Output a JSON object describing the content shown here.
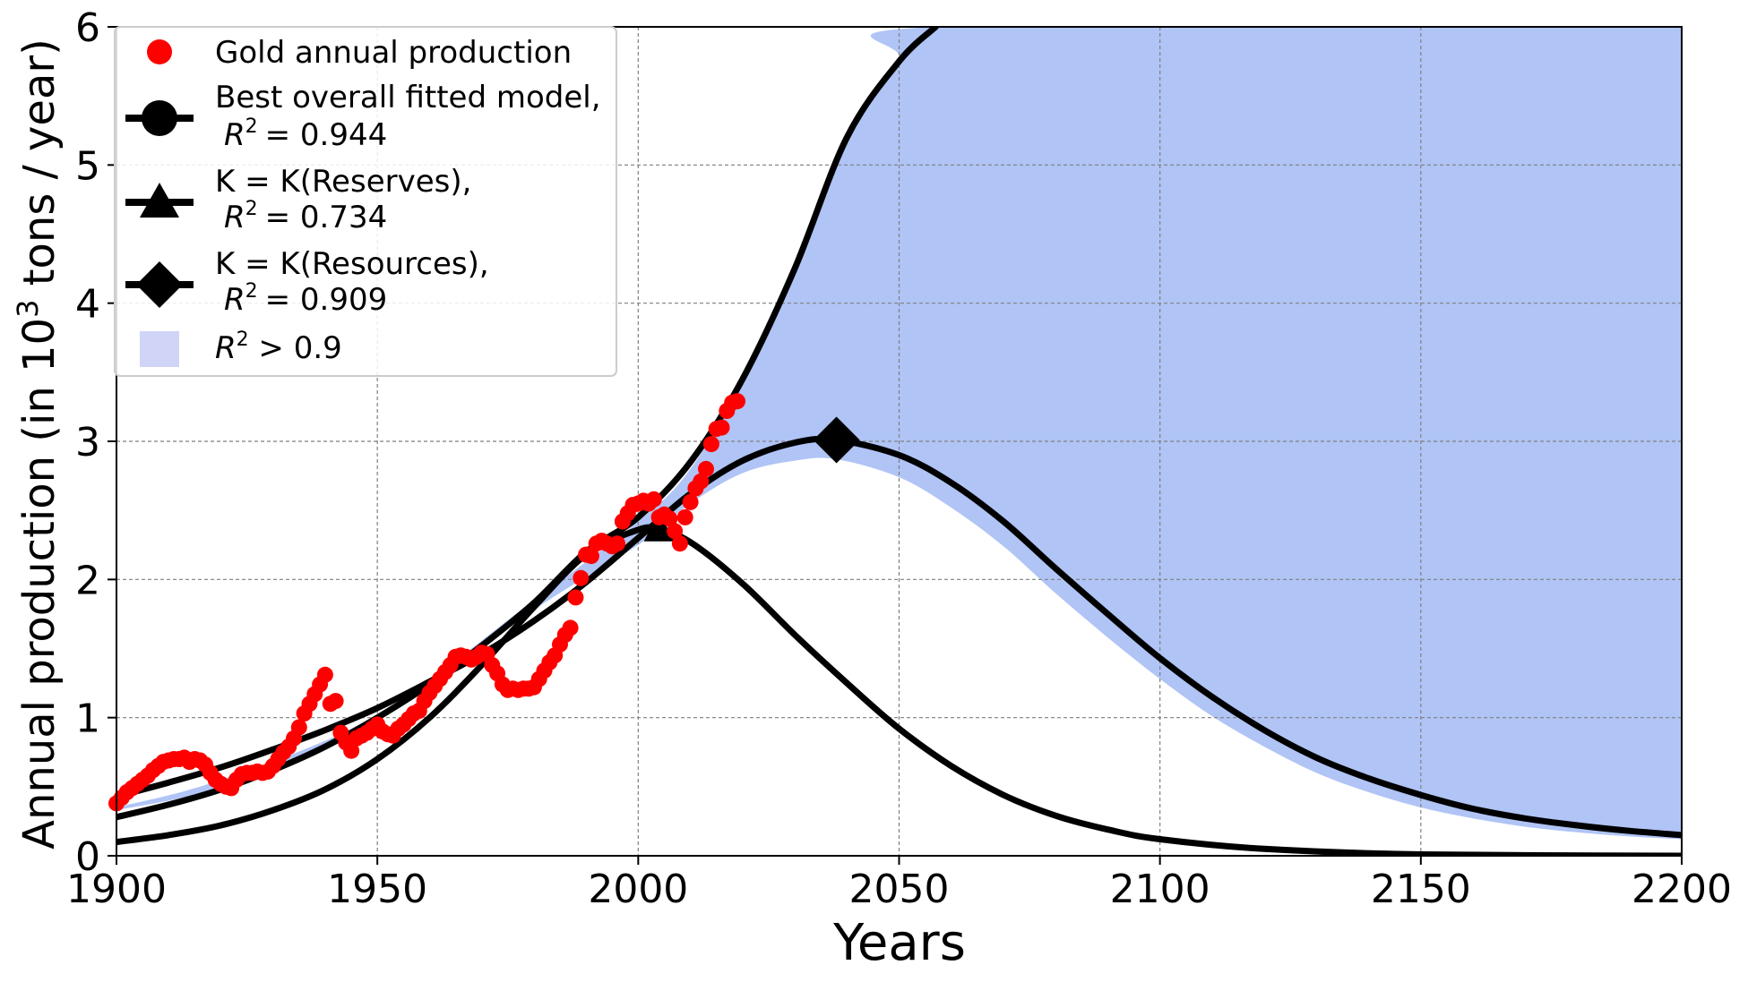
{
  "chart_data": {
    "type": "line",
    "title": "",
    "xlabel": "Years",
    "ylabel_prefix": "Annual production (in 10",
    "ylabel_sup": "3",
    "ylabel_suffix": " tons / year)",
    "xlim": [
      1900,
      2200
    ],
    "ylim": [
      0,
      6
    ],
    "grid": true,
    "x_ticks": [
      1900,
      1950,
      2000,
      2050,
      2100,
      2150,
      2200
    ],
    "y_ticks": [
      0,
      1,
      2,
      3,
      4,
      5,
      6
    ],
    "legend": {
      "placement": "top-left",
      "entries": [
        {
          "id": "gold",
          "line1": "Gold annual production",
          "line2": null,
          "r2_value": null,
          "marker": "circle",
          "color": "#ff0000"
        },
        {
          "id": "best",
          "line1": "Best overall fitted model,",
          "line2_prefix": "R",
          "line2_sup": "2",
          "r2_value": "= 0.944",
          "marker": "circle",
          "color": "#000000"
        },
        {
          "id": "reserves",
          "line1": "K = K(Reserves),",
          "line2_prefix": "R",
          "line2_sup": "2",
          "r2_value": "= 0.734",
          "marker": "triangle",
          "color": "#000000"
        },
        {
          "id": "resources",
          "line1": "K = K(Resources),",
          "line2_prefix": "R",
          "line2_sup": "2",
          "r2_value": "= 0.909",
          "marker": "diamond",
          "color": "#000000"
        },
        {
          "id": "band",
          "line1_prefix": "R",
          "line1_sup": "2",
          "line1_suffix": " > 0.9",
          "marker": "patch",
          "color": "#b0c4f5"
        }
      ]
    },
    "series": [
      {
        "name": "Gold annual production",
        "style": "markers",
        "color": "#ff0000",
        "points": [
          [
            1900,
            0.38
          ],
          [
            1901,
            0.42
          ],
          [
            1902,
            0.46
          ],
          [
            1903,
            0.49
          ],
          [
            1904,
            0.52
          ],
          [
            1905,
            0.55
          ],
          [
            1906,
            0.58
          ],
          [
            1907,
            0.62
          ],
          [
            1908,
            0.65
          ],
          [
            1909,
            0.68
          ],
          [
            1910,
            0.69
          ],
          [
            1911,
            0.7
          ],
          [
            1912,
            0.7
          ],
          [
            1913,
            0.71
          ],
          [
            1914,
            0.68
          ],
          [
            1915,
            0.7
          ],
          [
            1916,
            0.69
          ],
          [
            1917,
            0.66
          ],
          [
            1918,
            0.6
          ],
          [
            1919,
            0.55
          ],
          [
            1920,
            0.52
          ],
          [
            1921,
            0.5
          ],
          [
            1922,
            0.49
          ],
          [
            1923,
            0.55
          ],
          [
            1924,
            0.59
          ],
          [
            1925,
            0.6
          ],
          [
            1926,
            0.6
          ],
          [
            1927,
            0.61
          ],
          [
            1928,
            0.6
          ],
          [
            1929,
            0.61
          ],
          [
            1930,
            0.65
          ],
          [
            1931,
            0.7
          ],
          [
            1932,
            0.75
          ],
          [
            1933,
            0.79
          ],
          [
            1934,
            0.85
          ],
          [
            1935,
            0.93
          ],
          [
            1936,
            1.03
          ],
          [
            1937,
            1.1
          ],
          [
            1938,
            1.17
          ],
          [
            1939,
            1.24
          ],
          [
            1940,
            1.31
          ],
          [
            1941,
            1.1
          ],
          [
            1942,
            1.12
          ],
          [
            1943,
            0.89
          ],
          [
            1944,
            0.82
          ],
          [
            1945,
            0.76
          ],
          [
            1946,
            0.85
          ],
          [
            1947,
            0.87
          ],
          [
            1948,
            0.89
          ],
          [
            1949,
            0.92
          ],
          [
            1950,
            0.95
          ],
          [
            1951,
            0.9
          ],
          [
            1952,
            0.88
          ],
          [
            1953,
            0.87
          ],
          [
            1954,
            0.92
          ],
          [
            1955,
            0.95
          ],
          [
            1956,
            0.99
          ],
          [
            1957,
            1.03
          ],
          [
            1958,
            1.05
          ],
          [
            1959,
            1.12
          ],
          [
            1960,
            1.18
          ],
          [
            1961,
            1.23
          ],
          [
            1962,
            1.28
          ],
          [
            1963,
            1.33
          ],
          [
            1964,
            1.38
          ],
          [
            1965,
            1.44
          ],
          [
            1966,
            1.45
          ],
          [
            1967,
            1.44
          ],
          [
            1968,
            1.42
          ],
          [
            1969,
            1.44
          ],
          [
            1970,
            1.47
          ],
          [
            1971,
            1.46
          ],
          [
            1972,
            1.38
          ],
          [
            1973,
            1.32
          ],
          [
            1974,
            1.24
          ],
          [
            1975,
            1.2
          ],
          [
            1976,
            1.21
          ],
          [
            1977,
            1.2
          ],
          [
            1978,
            1.21
          ],
          [
            1979,
            1.21
          ],
          [
            1980,
            1.22
          ],
          [
            1981,
            1.28
          ],
          [
            1982,
            1.34
          ],
          [
            1983,
            1.4
          ],
          [
            1984,
            1.45
          ],
          [
            1985,
            1.53
          ],
          [
            1986,
            1.6
          ],
          [
            1987,
            1.65
          ],
          [
            1988,
            1.87
          ],
          [
            1989,
            2.01
          ],
          [
            1990,
            2.18
          ],
          [
            1991,
            2.17
          ],
          [
            1992,
            2.26
          ],
          [
            1993,
            2.28
          ],
          [
            1994,
            2.26
          ],
          [
            1995,
            2.24
          ],
          [
            1996,
            2.26
          ],
          [
            1997,
            2.42
          ],
          [
            1998,
            2.48
          ],
          [
            1999,
            2.54
          ],
          [
            2000,
            2.55
          ],
          [
            2001,
            2.57
          ],
          [
            2002,
            2.55
          ],
          [
            2003,
            2.58
          ],
          [
            2004,
            2.45
          ],
          [
            2005,
            2.47
          ],
          [
            2006,
            2.44
          ],
          [
            2007,
            2.35
          ],
          [
            2008,
            2.26
          ],
          [
            2009,
            2.45
          ],
          [
            2010,
            2.56
          ],
          [
            2011,
            2.66
          ],
          [
            2012,
            2.71
          ],
          [
            2013,
            2.8
          ],
          [
            2014,
            2.98
          ],
          [
            2015,
            3.09
          ],
          [
            2016,
            3.1
          ],
          [
            2017,
            3.22
          ],
          [
            2018,
            3.28
          ],
          [
            2019,
            3.29
          ]
        ]
      },
      {
        "name": "Best overall fitted model",
        "style": "line",
        "color": "#000000",
        "points": [
          [
            1900,
            0.28
          ],
          [
            1910,
            0.37
          ],
          [
            1920,
            0.48
          ],
          [
            1930,
            0.62
          ],
          [
            1940,
            0.79
          ],
          [
            1950,
            1.0
          ],
          [
            1960,
            1.24
          ],
          [
            1970,
            1.52
          ],
          [
            1980,
            1.83
          ],
          [
            1990,
            2.2
          ],
          [
            2000,
            2.45
          ],
          [
            2010,
            2.85
          ],
          [
            2020,
            3.45
          ],
          [
            2030,
            4.25
          ],
          [
            2040,
            5.2
          ],
          [
            2050,
            5.75
          ],
          [
            2057,
            6.0
          ]
        ]
      },
      {
        "name": "K = K(Reserves)",
        "style": "line",
        "color": "#000000",
        "peak_marker": [
          2004,
          2.36
        ],
        "points": [
          [
            1900,
            0.1
          ],
          [
            1910,
            0.15
          ],
          [
            1920,
            0.22
          ],
          [
            1930,
            0.33
          ],
          [
            1940,
            0.48
          ],
          [
            1950,
            0.7
          ],
          [
            1960,
            1.0
          ],
          [
            1970,
            1.38
          ],
          [
            1980,
            1.8
          ],
          [
            1990,
            2.18
          ],
          [
            2000,
            2.36
          ],
          [
            2004,
            2.36
          ],
          [
            2010,
            2.27
          ],
          [
            2020,
            1.97
          ],
          [
            2030,
            1.6
          ],
          [
            2040,
            1.25
          ],
          [
            2050,
            0.92
          ],
          [
            2060,
            0.65
          ],
          [
            2070,
            0.44
          ],
          [
            2080,
            0.29
          ],
          [
            2090,
            0.19
          ],
          [
            2100,
            0.12
          ],
          [
            2120,
            0.05
          ],
          [
            2150,
            0.01
          ],
          [
            2200,
            0.0
          ]
        ]
      },
      {
        "name": "K = K(Resources)",
        "style": "line",
        "color": "#000000",
        "peak_marker": [
          2038,
          3.01
        ],
        "points": [
          [
            1900,
            0.43
          ],
          [
            1910,
            0.53
          ],
          [
            1920,
            0.64
          ],
          [
            1930,
            0.77
          ],
          [
            1940,
            0.91
          ],
          [
            1950,
            1.07
          ],
          [
            1960,
            1.26
          ],
          [
            1970,
            1.46
          ],
          [
            1980,
            1.7
          ],
          [
            1990,
            1.98
          ],
          [
            2000,
            2.3
          ],
          [
            2010,
            2.62
          ],
          [
            2020,
            2.86
          ],
          [
            2030,
            2.99
          ],
          [
            2038,
            3.01
          ],
          [
            2050,
            2.9
          ],
          [
            2060,
            2.7
          ],
          [
            2070,
            2.42
          ],
          [
            2080,
            2.08
          ],
          [
            2090,
            1.75
          ],
          [
            2100,
            1.43
          ],
          [
            2110,
            1.15
          ],
          [
            2120,
            0.91
          ],
          [
            2130,
            0.71
          ],
          [
            2140,
            0.56
          ],
          [
            2150,
            0.44
          ],
          [
            2160,
            0.34
          ],
          [
            2170,
            0.27
          ],
          [
            2180,
            0.22
          ],
          [
            2190,
            0.18
          ],
          [
            2200,
            0.15
          ]
        ]
      },
      {
        "name": "R² > 0.9 band",
        "style": "band",
        "color": "#b0c4f5",
        "upper": [
          [
            1900,
            0.35
          ],
          [
            1920,
            0.55
          ],
          [
            1950,
            1.02
          ],
          [
            1980,
            1.85
          ],
          [
            2000,
            2.42
          ],
          [
            2010,
            2.8
          ],
          [
            2020,
            3.45
          ],
          [
            2030,
            4.25
          ],
          [
            2040,
            5.2
          ],
          [
            2050,
            5.75
          ],
          [
            2057,
            6.0
          ],
          [
            2200,
            6.0
          ]
        ],
        "lower": [
          [
            1900,
            0.33
          ],
          [
            1920,
            0.5
          ],
          [
            1950,
            0.98
          ],
          [
            1980,
            1.78
          ],
          [
            2000,
            2.25
          ],
          [
            2010,
            2.55
          ],
          [
            2020,
            2.77
          ],
          [
            2030,
            2.86
          ],
          [
            2038,
            2.87
          ],
          [
            2050,
            2.74
          ],
          [
            2060,
            2.52
          ],
          [
            2070,
            2.24
          ],
          [
            2080,
            1.9
          ],
          [
            2090,
            1.58
          ],
          [
            2100,
            1.28
          ],
          [
            2110,
            1.01
          ],
          [
            2120,
            0.79
          ],
          [
            2130,
            0.6
          ],
          [
            2140,
            0.46
          ],
          [
            2150,
            0.35
          ],
          [
            2160,
            0.27
          ],
          [
            2170,
            0.21
          ],
          [
            2180,
            0.17
          ],
          [
            2190,
            0.14
          ],
          [
            2200,
            0.12
          ]
        ]
      }
    ]
  }
}
